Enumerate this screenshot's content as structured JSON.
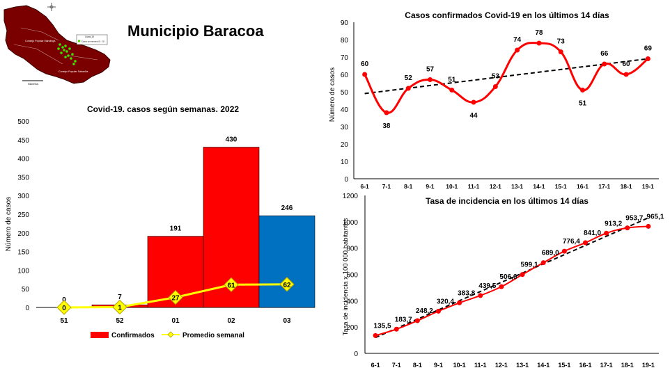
{
  "page": {
    "title": "Municipio Baracoa"
  },
  "map": {
    "labels": [
      "Consejo Popular Mandinga",
      "Consejo Popular Sabanilla",
      "Covid-19",
      "Casos por semana 01 - 02",
      "Kilómetros"
    ]
  },
  "colors": {
    "confirmed": "#ff0000",
    "week03": "#0070c0",
    "average": "#ffff00",
    "line": "#ff0000",
    "trend": "#000000"
  },
  "chart_data": [
    {
      "type": "bar",
      "title": "Covid-19. casos según semanas. 2022",
      "ylabel": "Número de casos",
      "xlabel": "",
      "categories": [
        "51",
        "52",
        "01",
        "02",
        "03"
      ],
      "ylim": [
        0,
        500
      ],
      "yticks": [
        "0",
        "50",
        "100",
        "150",
        "200",
        "250",
        "300",
        "350",
        "400",
        "450",
        "500"
      ],
      "legend_position": "bottom",
      "series": [
        {
          "name": "Confirmados",
          "kind": "bar",
          "values": [
            0,
            7,
            191,
            430,
            246
          ],
          "labels": [
            "0",
            "7",
            "191",
            "430",
            "246"
          ]
        },
        {
          "name": "Promedio semanal",
          "kind": "line",
          "values": [
            0,
            1,
            27,
            61,
            62
          ],
          "labels": [
            "0",
            "1",
            "27",
            "61",
            "62"
          ]
        }
      ]
    },
    {
      "type": "line",
      "title": "Casos confirmados  Covid-19 en los últimos 14 días",
      "ylabel": "Número de casos",
      "xlabel": "",
      "categories": [
        "6-1",
        "7-1",
        "8-1",
        "9-1",
        "10-1",
        "11-1",
        "12-1",
        "13-1",
        "14-1",
        "15-1",
        "16-1",
        "17-1",
        "18-1",
        "19-1"
      ],
      "ylim": [
        0,
        90
      ],
      "yticks": [
        "0",
        "10",
        "20",
        "30",
        "40",
        "50",
        "60",
        "70",
        "80",
        "90"
      ],
      "values": [
        60,
        38,
        52,
        57,
        51,
        44,
        53,
        74,
        78,
        73,
        51,
        66,
        60,
        69
      ],
      "labels": [
        "60",
        "38",
        "52",
        "57",
        "51",
        "44",
        "53",
        "74",
        "78",
        "73",
        "51",
        "66",
        "60",
        "69"
      ],
      "trendline": [
        49,
        69
      ]
    },
    {
      "type": "line",
      "title": "Tasa de incidencia  en los últimos 14 días",
      "ylabel": "Tasa de incidencia x 100 000 habitantes",
      "xlabel": "",
      "categories": [
        "6-1",
        "7-1",
        "8-1",
        "9-1",
        "10-1",
        "11-1",
        "12-1",
        "13-1",
        "14-1",
        "15-1",
        "16-1",
        "17-1",
        "18-1",
        "19-1"
      ],
      "ylim": [
        0,
        1200
      ],
      "yticks": [
        "0",
        "200",
        "400",
        "600",
        "800",
        "1000",
        "1200"
      ],
      "values": [
        135.5,
        183.7,
        248.2,
        320.4,
        383.8,
        439.5,
        506.6,
        599.1,
        689.0,
        776.4,
        841.0,
        913.2,
        953.7,
        965.1
      ],
      "labels": [
        "135,5",
        "183,7",
        "248,2",
        "320,4",
        "383,8",
        "439,5",
        "506,6",
        "599,1",
        "689,0",
        "776,4",
        "841,0",
        "913,2",
        "953,7",
        "965,1"
      ],
      "trendline": [
        120,
        1030
      ]
    }
  ]
}
